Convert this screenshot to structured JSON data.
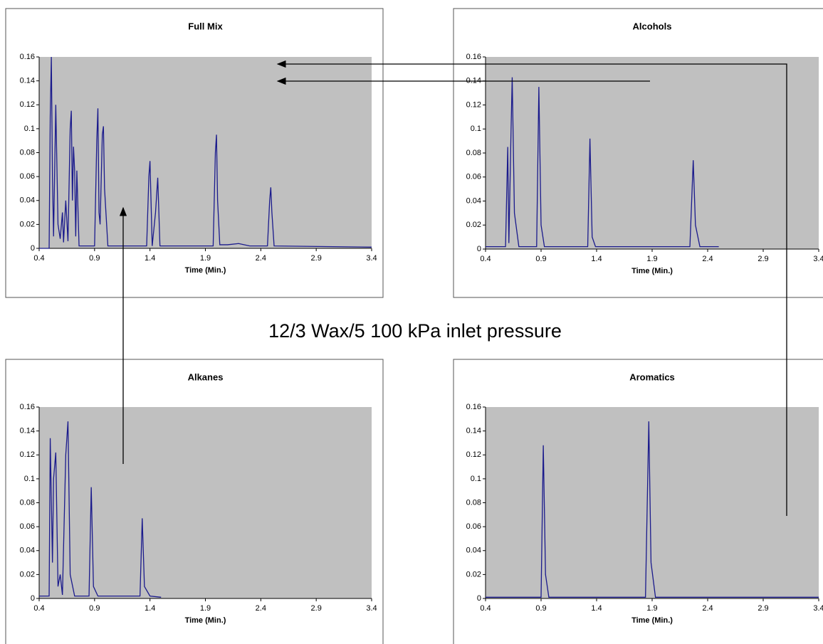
{
  "title": "12/3 Wax/5 100 kPa inlet pressure",
  "chart_data": [
    {
      "type": "line",
      "title": "Full Mix",
      "x_label": "Time (Min.)",
      "plot_background": "#c0c0c0",
      "x": [
        0.4,
        0.49,
        0.5,
        0.51,
        0.52,
        0.53,
        0.55,
        0.57,
        0.59,
        0.61,
        0.62,
        0.64,
        0.66,
        0.68,
        0.69,
        0.7,
        0.71,
        0.72,
        0.73,
        0.74,
        0.76,
        0.9,
        0.92,
        0.93,
        0.94,
        0.95,
        0.97,
        0.98,
        0.99,
        1.02,
        1.37,
        1.39,
        1.4,
        1.42,
        1.45,
        1.47,
        1.49,
        1.97,
        1.99,
        2.0,
        2.01,
        2.03,
        2.1,
        2.2,
        2.3,
        2.46,
        2.48,
        2.49,
        2.5,
        2.52,
        3.4
      ],
      "series": [
        {
          "color": "#1a1a8c",
          "values": [
            0,
            0,
            0.11,
            0.16,
            0.06,
            0.01,
            0.12,
            0.02,
            0.008,
            0.03,
            0.005,
            0.04,
            0.006,
            0.1,
            0.115,
            0.04,
            0.085,
            0.065,
            0.01,
            0.065,
            0.002,
            0.002,
            0.09,
            0.117,
            0.03,
            0.02,
            0.095,
            0.102,
            0.05,
            0.002,
            0.002,
            0.06,
            0.073,
            0.002,
            0.03,
            0.059,
            0.002,
            0.002,
            0.08,
            0.095,
            0.04,
            0.003,
            0.003,
            0.004,
            0.002,
            0.002,
            0.04,
            0.051,
            0.03,
            0.002,
            0.001
          ]
        }
      ],
      "xlim": [
        0.4,
        3.4
      ],
      "xticks": [
        0.4,
        0.9,
        1.4,
        1.9,
        2.4,
        2.9,
        3.4
      ],
      "ylim": [
        0,
        0.16
      ],
      "yticks": [
        0,
        0.02,
        0.04,
        0.06,
        0.08,
        0.1,
        0.12,
        0.14,
        0.16
      ]
    },
    {
      "type": "line",
      "title": "Alcohols",
      "x_label": "Time (Min.)",
      "plot_background": "#c0c0c0",
      "x": [
        0.4,
        0.58,
        0.6,
        0.61,
        0.63,
        0.64,
        0.66,
        0.7,
        0.86,
        0.88,
        0.9,
        0.93,
        1.32,
        1.34,
        1.36,
        1.39,
        2.24,
        2.27,
        2.29,
        2.33,
        2.5
      ],
      "series": [
        {
          "color": "#1a1a8c",
          "values": [
            0.002,
            0.002,
            0.085,
            0.005,
            0.1,
            0.143,
            0.03,
            0.002,
            0.002,
            0.135,
            0.02,
            0.002,
            0.002,
            0.092,
            0.01,
            0.002,
            0.002,
            0.074,
            0.02,
            0.002,
            0.002
          ]
        }
      ],
      "xlim": [
        0.4,
        3.4
      ],
      "xticks": [
        0.4,
        0.9,
        1.4,
        1.9,
        2.4,
        2.9,
        3.4
      ],
      "ylim": [
        0,
        0.16
      ],
      "yticks": [
        0,
        0.02,
        0.04,
        0.06,
        0.08,
        0.1,
        0.12,
        0.14,
        0.16
      ]
    },
    {
      "type": "line",
      "title": "Alkanes",
      "x_label": "Time (Min.)",
      "plot_background": "#c0c0c0",
      "x": [
        0.4,
        0.49,
        0.5,
        0.52,
        0.53,
        0.55,
        0.57,
        0.59,
        0.61,
        0.64,
        0.66,
        0.68,
        0.72,
        0.85,
        0.87,
        0.89,
        0.93,
        1.31,
        1.33,
        1.35,
        1.4,
        1.5
      ],
      "series": [
        {
          "color": "#1a1a8c",
          "values": [
            0.002,
            0.002,
            0.134,
            0.03,
            0.1,
            0.122,
            0.01,
            0.02,
            0.003,
            0.12,
            0.148,
            0.02,
            0.002,
            0.002,
            0.093,
            0.01,
            0.002,
            0.002,
            0.067,
            0.01,
            0.002,
            0.001
          ]
        }
      ],
      "xlim": [
        0.4,
        3.4
      ],
      "xticks": [
        0.4,
        0.9,
        1.4,
        1.9,
        2.4,
        2.9,
        3.4
      ],
      "ylim": [
        0,
        0.16
      ],
      "yticks": [
        0,
        0.02,
        0.04,
        0.06,
        0.08,
        0.1,
        0.12,
        0.14,
        0.16
      ]
    },
    {
      "type": "line",
      "title": "Aromatics",
      "x_label": "Time (Min.)",
      "plot_background": "#c0c0c0",
      "x": [
        0.4,
        0.9,
        0.92,
        0.94,
        0.97,
        1.84,
        1.87,
        1.89,
        1.93,
        3.4
      ],
      "series": [
        {
          "color": "#1a1a8c",
          "values": [
            0.001,
            0.001,
            0.128,
            0.02,
            0.001,
            0.001,
            0.148,
            0.03,
            0.001,
            0.001
          ]
        }
      ],
      "xlim": [
        0.4,
        3.4
      ],
      "xticks": [
        0.4,
        0.9,
        1.4,
        1.9,
        2.4,
        2.9,
        3.4
      ],
      "ylim": [
        0,
        0.16
      ],
      "yticks": [
        0,
        0.02,
        0.04,
        0.06,
        0.08,
        0.1,
        0.12,
        0.14,
        0.16
      ]
    }
  ]
}
